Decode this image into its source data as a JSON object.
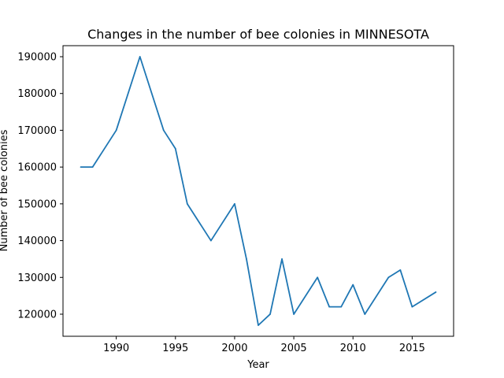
{
  "chart_data": {
    "type": "line",
    "title": "Changes in the number of bee colonies in MINNESOTA",
    "xlabel": "Year",
    "ylabel": "Number of bee colonies",
    "xlim": [
      1985.5,
      2018.5
    ],
    "ylim": [
      114000,
      193000
    ],
    "xticks": [
      1990,
      1995,
      2000,
      2005,
      2010,
      2015
    ],
    "yticks": [
      120000,
      130000,
      140000,
      150000,
      160000,
      170000,
      180000,
      190000
    ],
    "grid": false,
    "color": "#1f77b4",
    "x": [
      1987,
      1988,
      1990,
      1992,
      1994,
      1995,
      1996,
      1998,
      2000,
      2001,
      2002,
      2003,
      2004,
      2005,
      2007,
      2008,
      2009,
      2010,
      2011,
      2013,
      2014,
      2015,
      2017
    ],
    "y": [
      160000,
      160000,
      170000,
      190000,
      170000,
      165000,
      150000,
      140000,
      150000,
      135000,
      117000,
      120000,
      135000,
      120000,
      130000,
      122000,
      122000,
      128000,
      120000,
      130000,
      132000,
      122000,
      126000
    ]
  }
}
